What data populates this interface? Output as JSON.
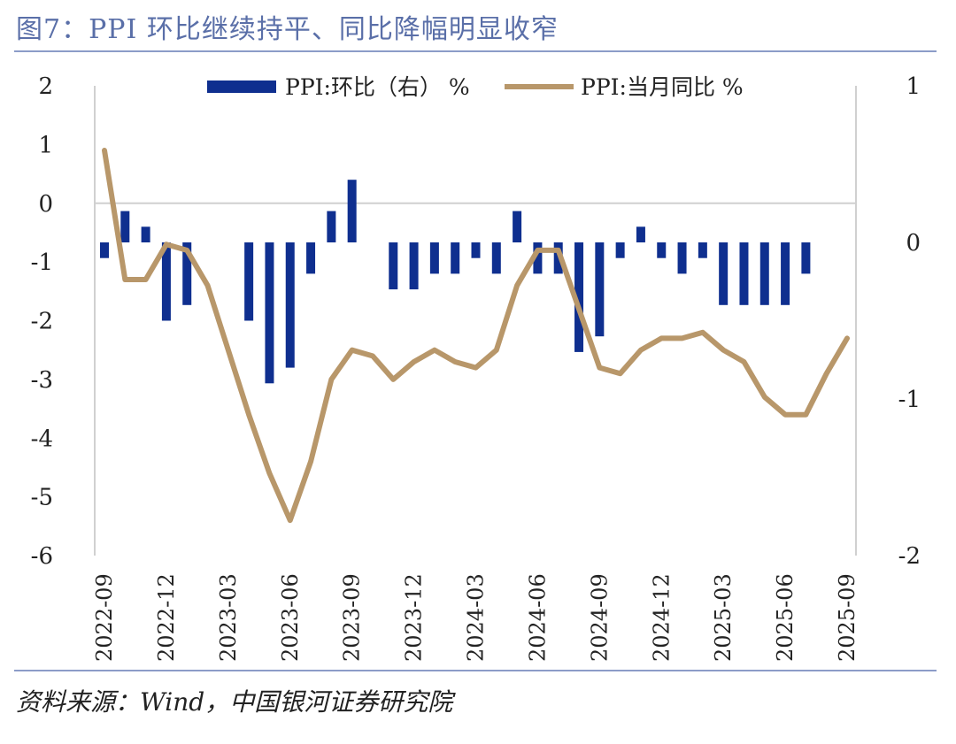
{
  "title": "图7：PPI 环比继续持平、同比降幅明显收窄",
  "source": "资料来源：Wind，中国银河证券研究院",
  "colors": {
    "bar": "#0f2f8f",
    "line": "#b8976a",
    "title": "#5a6fa8",
    "rule": "#8c9cc8",
    "grid": "#d0d0d0"
  },
  "chart_data": {
    "type": "bar+line",
    "title": "PPI 环比继续持平、同比降幅明显收窄",
    "categories": [
      "2022-09",
      "2022-10",
      "2022-11",
      "2022-12",
      "2023-01",
      "2023-02",
      "2023-03",
      "2023-04",
      "2023-05",
      "2023-06",
      "2023-07",
      "2023-08",
      "2023-09",
      "2023-10",
      "2023-11",
      "2023-12",
      "2024-01",
      "2024-02",
      "2024-03",
      "2024-04",
      "2024-05",
      "2024-06",
      "2024-07",
      "2024-08",
      "2024-09",
      "2024-10",
      "2024-11",
      "2024-12",
      "2025-01",
      "2025-02",
      "2025-03",
      "2025-04",
      "2025-05",
      "2025-06",
      "2025-07",
      "2025-08",
      "2025-09"
    ],
    "x_tick_labels": [
      "2022-09",
      "2022-12",
      "2023-03",
      "2023-06",
      "2023-09",
      "2023-12",
      "2024-03",
      "2024-06",
      "2024-09",
      "2024-12",
      "2025-03",
      "2025-06",
      "2025-09"
    ],
    "series": [
      {
        "name": "PPI:环比（右） %",
        "type": "bar",
        "axis": "right",
        "values": [
          -0.1,
          0.2,
          0.1,
          -0.5,
          -0.4,
          0,
          0,
          -0.5,
          -0.9,
          -0.8,
          -0.2,
          0.2,
          0.4,
          0,
          -0.3,
          -0.3,
          -0.2,
          -0.2,
          -0.1,
          -0.2,
          0.2,
          -0.2,
          -0.2,
          -0.7,
          -0.6,
          -0.1,
          0.1,
          -0.1,
          -0.2,
          -0.1,
          -0.4,
          -0.4,
          -0.4,
          -0.4,
          -0.2,
          0,
          0
        ]
      },
      {
        "name": "PPI:当月同比 %",
        "type": "line",
        "axis": "left",
        "values": [
          0.9,
          -1.3,
          -1.3,
          -0.7,
          -0.8,
          -1.4,
          -2.5,
          -3.6,
          -4.6,
          -5.4,
          -4.4,
          -3.0,
          -2.5,
          -2.6,
          -3.0,
          -2.7,
          -2.5,
          -2.7,
          -2.8,
          -2.5,
          -1.4,
          -0.8,
          -0.8,
          -1.8,
          -2.8,
          -2.9,
          -2.5,
          -2.3,
          -2.3,
          -2.2,
          -2.5,
          -2.7,
          -3.3,
          -3.6,
          -3.6,
          -2.9,
          -2.3
        ]
      }
    ],
    "left_axis": {
      "range": [
        -6,
        2
      ],
      "ticks": [
        2,
        1,
        0,
        -1,
        -2,
        -3,
        -4,
        -5,
        -6
      ]
    },
    "right_axis": {
      "range": [
        -2,
        1
      ],
      "ticks": [
        1,
        0,
        -1,
        -2
      ]
    },
    "legend": {
      "placement": "top-center",
      "entries": [
        "PPI:环比（右） %",
        "PPI:当月同比 %"
      ]
    },
    "xlabel": "",
    "ylabel": ""
  }
}
